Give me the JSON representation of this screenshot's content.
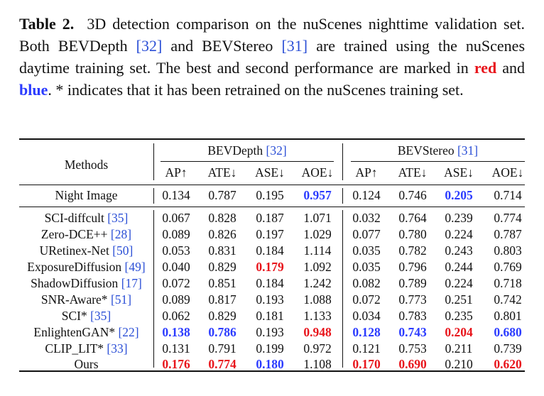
{
  "caption": {
    "label": "Table 2.",
    "t1": "3D detection comparison on the nuScenes nighttime validation set. Both BEVDepth",
    "ref1": "[32]",
    "t2": "and BEVStereo",
    "ref2": "[31]",
    "t3": "are trained using the nuScenes daytime training set. The best and second performance are marked in",
    "red_word": "red",
    "and_word": "and",
    "blue_word": "blue",
    "t4": ". * indicates that it has been retrained on the nuScenes training set."
  },
  "table": {
    "methods_header": "Methods",
    "group1": {
      "name": "BEVDepth",
      "ref": "[32]"
    },
    "group2": {
      "name": "BEVStereo",
      "ref": "[31]"
    },
    "metrics": [
      "AP↑",
      "ATE↓",
      "ASE↓",
      "AOE↓",
      "AP↑",
      "ATE↓",
      "ASE↓",
      "AOE↓"
    ],
    "night": {
      "name": "Night Image",
      "ref": "",
      "values": [
        "0.134",
        "0.787",
        "0.195",
        "0.957",
        "0.124",
        "0.746",
        "0.205",
        "0.714"
      ]
    },
    "rows": [
      {
        "name": "SCI-diffcult",
        "ref": "[35]",
        "values": [
          "0.067",
          "0.828",
          "0.187",
          "1.071",
          "0.032",
          "0.764",
          "0.239",
          "0.774"
        ]
      },
      {
        "name": "Zero-DCE++",
        "ref": "[28]",
        "values": [
          "0.089",
          "0.826",
          "0.197",
          "1.029",
          "0.077",
          "0.780",
          "0.224",
          "0.787"
        ]
      },
      {
        "name": "URetinex-Net",
        "ref": "[50]",
        "values": [
          "0.053",
          "0.831",
          "0.184",
          "1.114",
          "0.035",
          "0.782",
          "0.243",
          "0.803"
        ]
      },
      {
        "name": "ExposureDiffusion",
        "ref": "[49]",
        "values": [
          "0.040",
          "0.829",
          "0.179",
          "1.092",
          "0.035",
          "0.796",
          "0.244",
          "0.769"
        ]
      },
      {
        "name": "ShadowDiffusion",
        "ref": "[17]",
        "values": [
          "0.072",
          "0.851",
          "0.184",
          "1.242",
          "0.082",
          "0.789",
          "0.224",
          "0.718"
        ]
      },
      {
        "name": "SNR-Aware*",
        "ref": "[51]",
        "values": [
          "0.089",
          "0.817",
          "0.193",
          "1.088",
          "0.072",
          "0.773",
          "0.251",
          "0.742"
        ]
      },
      {
        "name": "SCI*",
        "ref": "[35]",
        "values": [
          "0.062",
          "0.829",
          "0.181",
          "1.133",
          "0.034",
          "0.783",
          "0.235",
          "0.801"
        ]
      },
      {
        "name": "EnlightenGAN*",
        "ref": "[22]",
        "values": [
          "0.138",
          "0.786",
          "0.193",
          "0.948",
          "0.128",
          "0.743",
          "0.204",
          "0.680"
        ]
      },
      {
        "name": "CLIP_LIT*",
        "ref": "[33]",
        "values": [
          "0.131",
          "0.791",
          "0.199",
          "0.972",
          "0.121",
          "0.753",
          "0.211",
          "0.739"
        ]
      },
      {
        "name": "Ours",
        "ref": "",
        "values": [
          "0.176",
          "0.774",
          "0.180",
          "1.108",
          "0.170",
          "0.690",
          "0.210",
          "0.620"
        ]
      }
    ],
    "highlight_night": [
      "",
      "",
      "",
      "second",
      "",
      "",
      "second",
      ""
    ],
    "highlight_rows": [
      [
        "",
        "",
        "",
        "",
        "",
        "",
        "",
        ""
      ],
      [
        "",
        "",
        "",
        "",
        "",
        "",
        "",
        ""
      ],
      [
        "",
        "",
        "",
        "",
        "",
        "",
        "",
        ""
      ],
      [
        "",
        "",
        "best",
        "",
        "",
        "",
        "",
        ""
      ],
      [
        "",
        "",
        "",
        "",
        "",
        "",
        "",
        ""
      ],
      [
        "",
        "",
        "",
        "",
        "",
        "",
        "",
        ""
      ],
      [
        "",
        "",
        "",
        "",
        "",
        "",
        "",
        ""
      ],
      [
        "second",
        "second",
        "",
        "best",
        "second",
        "second",
        "best",
        "second"
      ],
      [
        "",
        "",
        "",
        "",
        "",
        "",
        "",
        ""
      ],
      [
        "best",
        "best",
        "second",
        "",
        "best",
        "best",
        "",
        "best"
      ]
    ]
  }
}
